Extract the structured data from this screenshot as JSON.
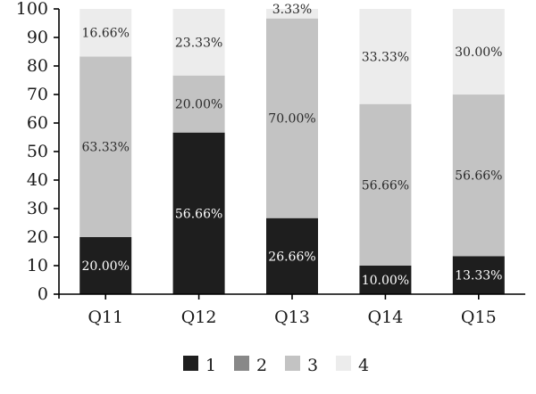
{
  "chart_data": {
    "type": "bar",
    "stacked": true,
    "categories": [
      "Q11",
      "Q12",
      "Q13",
      "Q14",
      "Q15"
    ],
    "series": [
      {
        "name": "1",
        "color": "#1e1e1e",
        "values": [
          20.0,
          56.66,
          26.66,
          10.0,
          13.33
        ],
        "labels": [
          "20.00%",
          "56.66%",
          "26.66%",
          "10.00%",
          "13.33%"
        ]
      },
      {
        "name": "2",
        "color": "#888888",
        "values": [
          0,
          0,
          0,
          0,
          0
        ],
        "labels": [
          "",
          "",
          "",
          "",
          ""
        ]
      },
      {
        "name": "3",
        "color": "#c3c3c3",
        "values": [
          63.33,
          20.0,
          70.0,
          56.66,
          56.66
        ],
        "labels": [
          "63.33%",
          "20.00%",
          "70.00%",
          "56.66%",
          "56.66%"
        ]
      },
      {
        "name": "4",
        "color": "#ececec",
        "values": [
          16.66,
          23.33,
          3.33,
          33.33,
          30.0
        ],
        "labels": [
          "16.66%",
          "23.33%",
          "3.33%",
          "33.33%",
          "30.00%"
        ]
      }
    ],
    "ylim": [
      0,
      100
    ],
    "yticks": [
      "0",
      "10",
      "20",
      "30",
      "40",
      "50",
      "60",
      "70",
      "80",
      "90",
      "100"
    ],
    "grid": false,
    "legend_position": "bottom",
    "title": "",
    "xlabel": "",
    "ylabel": ""
  }
}
